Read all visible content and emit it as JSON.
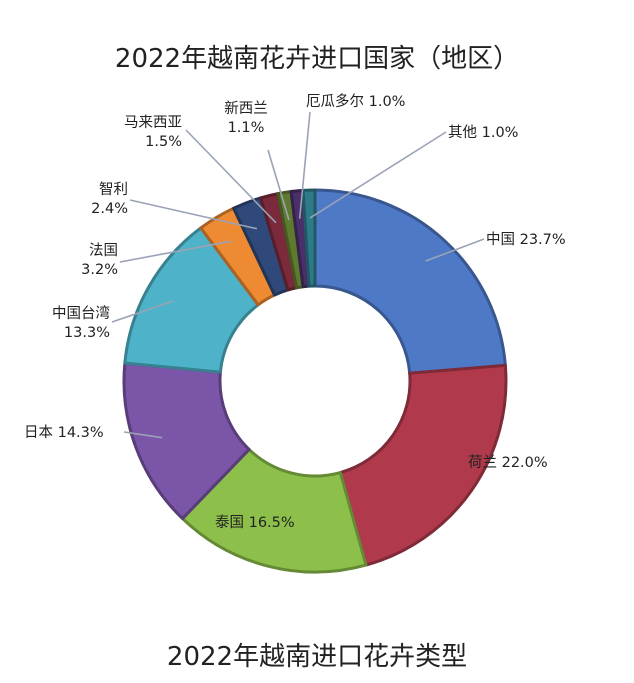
{
  "chart_data": {
    "type": "pie",
    "subtype": "donut",
    "title": "2022年越南花卉进口国家（地区）",
    "categories": [
      "中国",
      "荷兰",
      "泰国",
      "日本",
      "中国台湾",
      "法国",
      "智利",
      "马来西亚",
      "新西兰",
      "厄瓜多尔",
      "其他"
    ],
    "values": [
      23.7,
      22.0,
      16.5,
      14.3,
      13.3,
      3.2,
      2.4,
      1.5,
      1.1,
      1.0,
      1.0
    ],
    "value_labels": [
      "23.7%",
      "22.0%",
      "16.5%",
      "14.3%",
      "13.3%",
      "3.2%",
      "2.4%",
      "1.5%",
      "1.1%",
      "1.0%",
      "1.0%"
    ],
    "colors": [
      "#4e79c6",
      "#b03a4c",
      "#8cc04a",
      "#7a55a8",
      "#4eb3c8",
      "#ee8a32",
      "#2f4a7a",
      "#7a2a3a",
      "#5f7a2e",
      "#4a2f6a",
      "#2f7a8a"
    ],
    "legend": "none",
    "xlabel": "",
    "ylabel": ""
  },
  "footer": {
    "title": "2022年越南进口花卉类型"
  }
}
